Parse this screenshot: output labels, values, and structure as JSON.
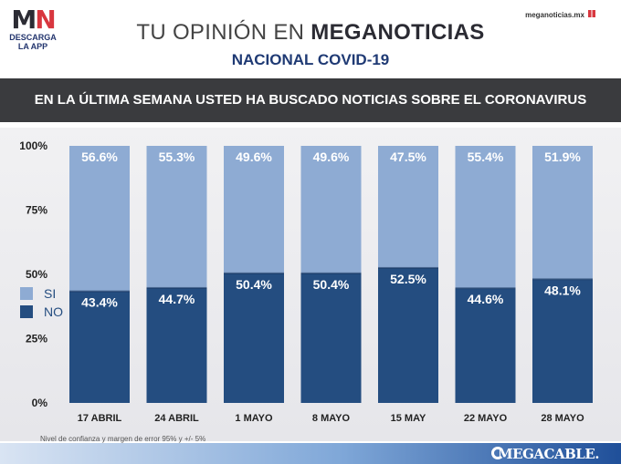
{
  "logo": {
    "mark_m": "M",
    "mark_n": "N",
    "line1": "DESCARGA",
    "line2": "LA APP"
  },
  "site": "meganoticias.mx",
  "title": {
    "light": "TU OPINIÓN EN ",
    "bold": "MEGANOTICIAS"
  },
  "subtitle": "NACIONAL COVID-19",
  "question": "EN LA ÚLTIMA SEMANA USTED HA BUSCADO NOTICIAS SOBRE EL CORONAVIRUS",
  "footnote": "Nivel de confianza y margen de error 95% y +/- 5%",
  "brand": "MEGACABLE.",
  "colors": {
    "si": "#8eabd3",
    "no": "#244d80",
    "label": "#ffffff"
  },
  "chart_data": {
    "type": "bar",
    "stacked": true,
    "categories": [
      "17 ABRIL",
      "24 ABRIL",
      "1 MAYO",
      "8 MAYO",
      "15 MAY",
      "22 MAYO",
      "28 MAYO"
    ],
    "series": [
      {
        "name": "NO",
        "values": [
          43.4,
          44.7,
          50.4,
          50.4,
          52.5,
          44.6,
          48.1
        ]
      },
      {
        "name": "SI",
        "values": [
          56.6,
          55.3,
          49.6,
          49.6,
          47.5,
          55.4,
          51.9
        ]
      }
    ],
    "value_labels": {
      "NO": [
        "43.4%",
        "44.7%",
        "50.4%",
        "50.4%",
        "52.5%",
        "44.6%",
        "48.1%"
      ],
      "SI": [
        "56.6%",
        "55.3%",
        "49.6%",
        "49.6%",
        "47.5%",
        "55.4%",
        "51.9%"
      ]
    },
    "yticks": [
      0,
      25,
      50,
      75,
      100
    ],
    "ytick_labels": [
      "0%",
      "25%",
      "50%",
      "75%",
      "100%"
    ],
    "ylim": [
      0,
      100
    ],
    "grid": false,
    "legend": {
      "placement": "left-middle",
      "entries": [
        "SI",
        "NO"
      ]
    }
  }
}
